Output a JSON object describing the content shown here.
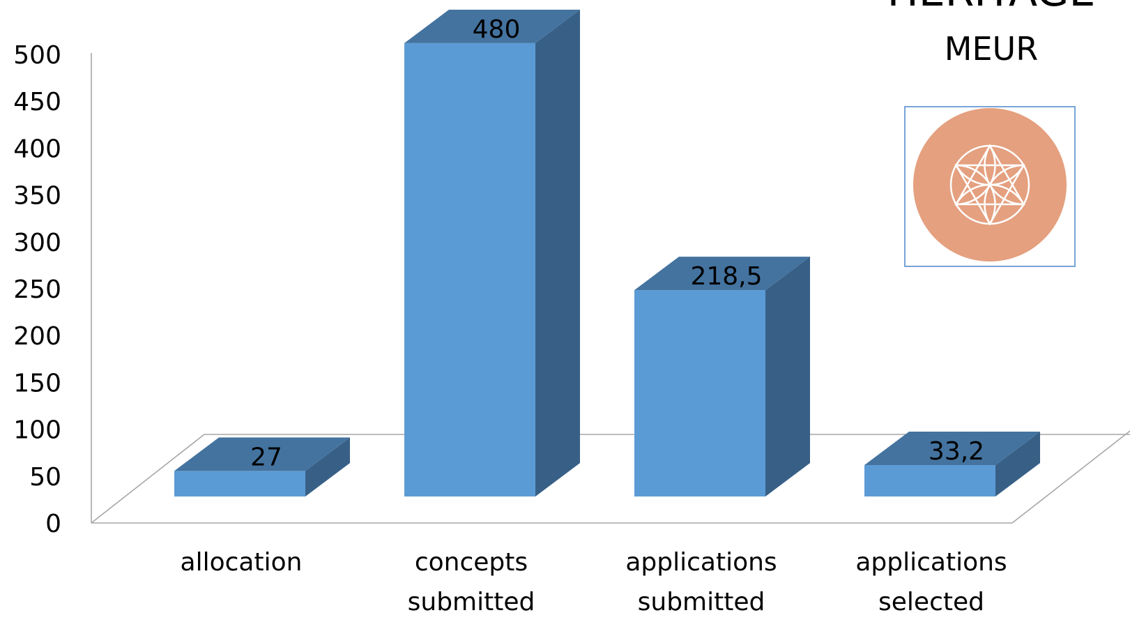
{
  "chart_data": {
    "type": "bar",
    "title": "HERITAGE",
    "unit_label": "MEUR",
    "categories": [
      [
        "allocation"
      ],
      [
        "concepts",
        "submitted"
      ],
      [
        "applications",
        "submitted"
      ],
      [
        "applications",
        "selected"
      ]
    ],
    "values": [
      27,
      480,
      218.5,
      33.2
    ],
    "data_labels": [
      "27",
      "480",
      "218,5",
      "33,2"
    ],
    "ylim": [
      0,
      500
    ],
    "yticks": [
      0,
      50,
      100,
      150,
      200,
      250,
      300,
      350,
      400,
      450,
      500
    ],
    "grid": false,
    "style": "3d-column",
    "colors": {
      "bar_front": "#5b9bd5",
      "bar_top": "#44739f",
      "bar_side": "#386087",
      "frame": "#a6a6a6",
      "logo_circle": "#e4a07f",
      "logo_border": "#4a86c8",
      "logo_pattern": "#ffffff"
    }
  },
  "logo": {
    "icon": "heritage-flower-icon"
  }
}
